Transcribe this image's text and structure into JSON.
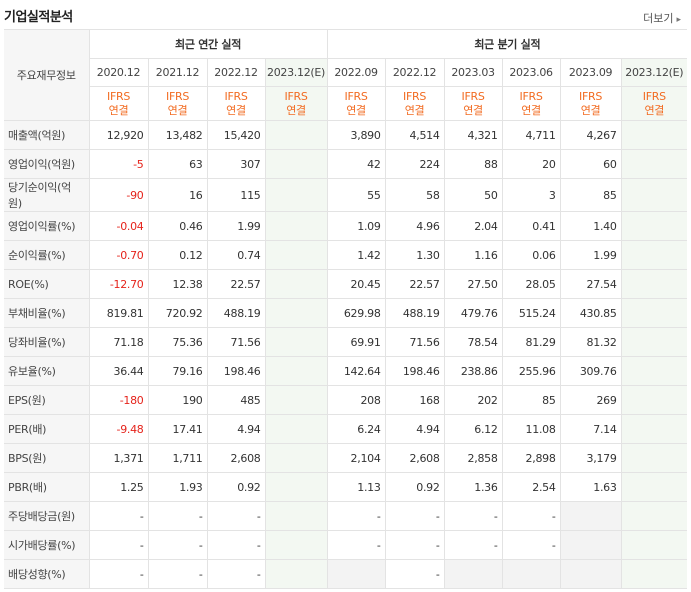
{
  "header": {
    "title": "기업실적분석",
    "more_label": "더보기",
    "more_icon": "chevron-right-icon"
  },
  "table": {
    "row_header_label": "주요재무정보",
    "groups": {
      "annual": "최근 연간 실적",
      "quarterly": "최근 분기 실적"
    },
    "annual_periods": [
      "2020.12",
      "2021.12",
      "2022.12",
      "2023.12(E)"
    ],
    "quarterly_periods": [
      "2022.09",
      "2022.12",
      "2023.03",
      "2023.06",
      "2023.09",
      "2023.12(E)"
    ],
    "basis_line1": "IFRS",
    "basis_line2": "연결",
    "rows": [
      {
        "label": "매출액(억원)",
        "annual": [
          "12,920",
          "13,482",
          "15,420",
          ""
        ],
        "quarterly": [
          "3,890",
          "4,514",
          "4,321",
          "4,711",
          "4,267",
          ""
        ]
      },
      {
        "label": "영업이익(억원)",
        "annual": [
          "-5",
          "63",
          "307",
          ""
        ],
        "quarterly": [
          "42",
          "224",
          "88",
          "20",
          "60",
          ""
        ]
      },
      {
        "label": "당기순이익(억원)",
        "annual": [
          "-90",
          "16",
          "115",
          ""
        ],
        "quarterly": [
          "55",
          "58",
          "50",
          "3",
          "85",
          ""
        ]
      },
      {
        "label": "영업이익률(%)",
        "annual": [
          "-0.04",
          "0.46",
          "1.99",
          ""
        ],
        "quarterly": [
          "1.09",
          "4.96",
          "2.04",
          "0.41",
          "1.40",
          ""
        ]
      },
      {
        "label": "순이익률(%)",
        "annual": [
          "-0.70",
          "0.12",
          "0.74",
          ""
        ],
        "quarterly": [
          "1.42",
          "1.30",
          "1.16",
          "0.06",
          "1.99",
          ""
        ]
      },
      {
        "label": "ROE(%)",
        "annual": [
          "-12.70",
          "12.38",
          "22.57",
          ""
        ],
        "quarterly": [
          "20.45",
          "22.57",
          "27.50",
          "28.05",
          "27.54",
          ""
        ]
      },
      {
        "label": "부채비율(%)",
        "annual": [
          "819.81",
          "720.92",
          "488.19",
          ""
        ],
        "quarterly": [
          "629.98",
          "488.19",
          "479.76",
          "515.24",
          "430.85",
          ""
        ]
      },
      {
        "label": "당좌비율(%)",
        "annual": [
          "71.18",
          "75.36",
          "71.56",
          ""
        ],
        "quarterly": [
          "69.91",
          "71.56",
          "78.54",
          "81.29",
          "81.32",
          ""
        ]
      },
      {
        "label": "유보율(%)",
        "annual": [
          "36.44",
          "79.16",
          "198.46",
          ""
        ],
        "quarterly": [
          "142.64",
          "198.46",
          "238.86",
          "255.96",
          "309.76",
          ""
        ]
      },
      {
        "label": "EPS(원)",
        "annual": [
          "-180",
          "190",
          "485",
          ""
        ],
        "quarterly": [
          "208",
          "168",
          "202",
          "85",
          "269",
          ""
        ]
      },
      {
        "label": "PER(배)",
        "annual": [
          "-9.48",
          "17.41",
          "4.94",
          ""
        ],
        "quarterly": [
          "6.24",
          "4.94",
          "6.12",
          "11.08",
          "7.14",
          ""
        ]
      },
      {
        "label": "BPS(원)",
        "annual": [
          "1,371",
          "1,711",
          "2,608",
          ""
        ],
        "quarterly": [
          "2,104",
          "2,608",
          "2,858",
          "2,898",
          "3,179",
          ""
        ]
      },
      {
        "label": "PBR(배)",
        "annual": [
          "1.25",
          "1.93",
          "0.92",
          ""
        ],
        "quarterly": [
          "1.13",
          "0.92",
          "1.36",
          "2.54",
          "1.63",
          ""
        ]
      },
      {
        "label": "주당배당금(원)",
        "annual": [
          "-",
          "-",
          "-",
          ""
        ],
        "quarterly": [
          "-",
          "-",
          "-",
          "-",
          "",
          ""
        ]
      },
      {
        "label": "시가배당률(%)",
        "annual": [
          "-",
          "-",
          "-",
          ""
        ],
        "quarterly": [
          "-",
          "-",
          "-",
          "-",
          "",
          ""
        ]
      },
      {
        "label": "배당성향(%)",
        "annual": [
          "-",
          "-",
          "-",
          ""
        ],
        "quarterly": [
          "",
          "-",
          "",
          "",
          "",
          ""
        ]
      }
    ],
    "colors": {
      "negative": "#e5231b",
      "basis": "#f26b21",
      "estimate_bg": "#f3f8f2"
    }
  }
}
